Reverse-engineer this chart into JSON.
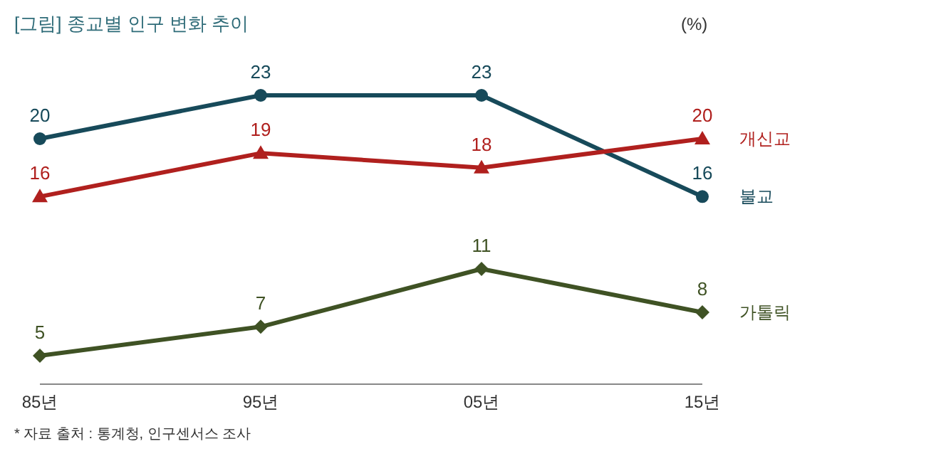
{
  "chart_data": {
    "type": "line",
    "title": "[그림] 종교별 인구 변화 추이",
    "annotations": [
      "(%)",
      "* 자료 출처 : 통계청, 인구센서스 조사"
    ],
    "categories": [
      "85년",
      "95년",
      "05년",
      "15년"
    ],
    "data_labels": true,
    "series": [
      {
        "name": "불교",
        "color": "#174a5a",
        "values": [
          20,
          23,
          23,
          16
        ],
        "marker": "circle"
      },
      {
        "name": "개신교",
        "color": "#b0201e",
        "values": [
          16,
          19,
          18,
          20
        ],
        "marker": "triangle"
      },
      {
        "name": "가톨릭",
        "color": "#3f5224",
        "values": [
          5,
          7,
          11,
          8
        ],
        "marker": "diamond"
      }
    ]
  }
}
